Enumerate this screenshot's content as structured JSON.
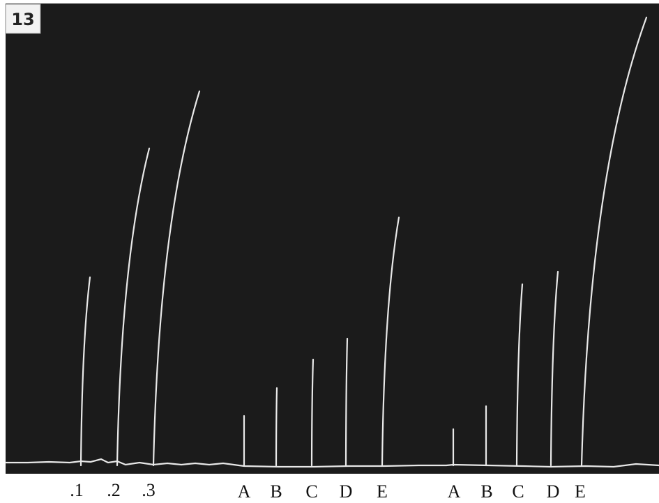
{
  "panel_label": "13",
  "labels": [
    ".1",
    ".2",
    ".3",
    "A",
    "B",
    "C",
    "D",
    "E",
    "A",
    "B",
    "C",
    "D",
    "E"
  ]
}
